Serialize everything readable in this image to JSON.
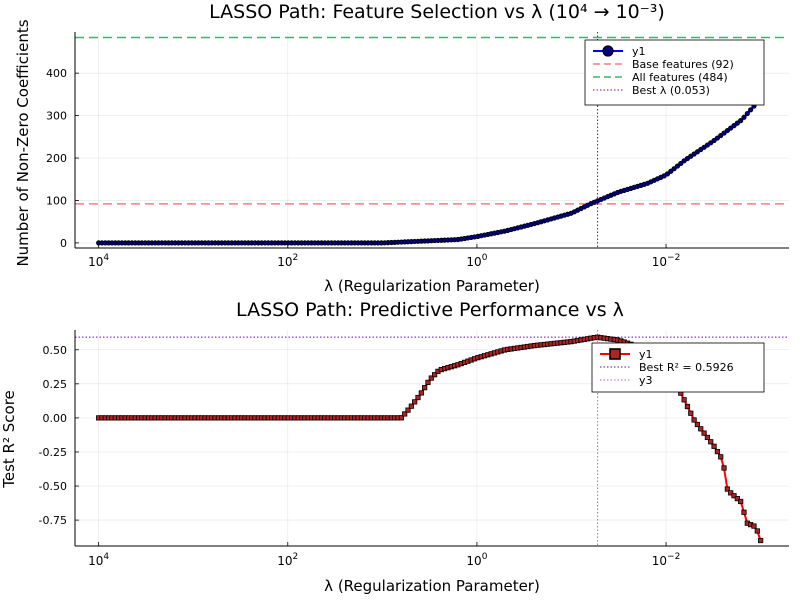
{
  "chart_data": [
    {
      "type": "scatter",
      "title": "LASSO Path: Feature Selection vs λ (10⁴ → 10⁻³)",
      "xlabel": "λ (Regularization Parameter)",
      "ylabel": "Number of Non-Zero Coefficients",
      "xscale": "log10 (reversed)",
      "xlim_log10": [
        4.25,
        -3.3
      ],
      "ylim": [
        -12,
        497
      ],
      "xticks": [
        {
          "log10": 4,
          "label": "10",
          "exp": "4"
        },
        {
          "log10": 2,
          "label": "10",
          "exp": "2"
        },
        {
          "log10": 0,
          "label": "10",
          "exp": "0"
        },
        {
          "log10": -2,
          "label": "10",
          "exp": "−2"
        }
      ],
      "yticks": [
        {
          "value": 0,
          "label": "0"
        },
        {
          "value": 100,
          "label": "100"
        },
        {
          "value": 200,
          "label": "200"
        },
        {
          "value": 300,
          "label": "300"
        },
        {
          "value": 400,
          "label": "400"
        }
      ],
      "grid": true,
      "legend_position": "top-right",
      "series": [
        {
          "name": "y1",
          "color": "#0000ff",
          "marker": "circle",
          "log10_range": [
            4,
            -3
          ],
          "n_points": 200,
          "keypoints": [
            [
              4.0,
              0
            ],
            [
              1.0,
              0
            ],
            [
              0.8,
              2
            ],
            [
              0.5,
              5
            ],
            [
              0.2,
              8
            ],
            [
              0.0,
              15
            ],
            [
              -0.3,
              28
            ],
            [
              -0.6,
              45
            ],
            [
              -1.0,
              70
            ],
            [
              -1.2,
              92
            ],
            [
              -1.5,
              120
            ],
            [
              -1.8,
              140
            ],
            [
              -2.0,
              160
            ],
            [
              -2.2,
              195
            ],
            [
              -2.5,
              240
            ],
            [
              -2.8,
              290
            ],
            [
              -3.0,
              340
            ],
            [
              -3.1,
              372
            ]
          ]
        }
      ],
      "reference_lines": [
        {
          "name": "Base features (92)",
          "axis": "y",
          "value": 92,
          "color": "#f08080",
          "style": "dashed"
        },
        {
          "name": "All features (484)",
          "axis": "y",
          "value": 484,
          "color": "#3cb371",
          "style": "dashed"
        },
        {
          "name": "Best λ (0.053)",
          "axis": "x",
          "value": 0.053,
          "color": "#6a0dad",
          "style": "dotted"
        }
      ]
    },
    {
      "type": "scatter",
      "title": "LASSO Path: Predictive Performance vs λ",
      "xlabel": "λ (Regularization Parameter)",
      "ylabel": "Test R² Score",
      "xscale": "log10 (reversed)",
      "xlim_log10": [
        4.25,
        -3.3
      ],
      "ylim": [
        -0.94,
        0.645
      ],
      "xticks": [
        {
          "log10": 4,
          "label": "10",
          "exp": "4"
        },
        {
          "log10": 2,
          "label": "10",
          "exp": "2"
        },
        {
          "log10": 0,
          "label": "10",
          "exp": "0"
        },
        {
          "log10": -2,
          "label": "10",
          "exp": "−2"
        }
      ],
      "yticks": [
        {
          "value": 0.5,
          "label": "0.50"
        },
        {
          "value": 0.25,
          "label": "0.25"
        },
        {
          "value": 0.0,
          "label": "0.00"
        },
        {
          "value": -0.25,
          "label": "-0.25"
        },
        {
          "value": -0.5,
          "label": "-0.50"
        },
        {
          "value": -0.75,
          "label": "-0.75"
        }
      ],
      "grid": true,
      "legend_position": "top-right",
      "series": [
        {
          "name": "y1",
          "color": "#ff0000",
          "marker": "square",
          "log10_range": [
            4,
            -3
          ],
          "n_points": 200,
          "keypoints": [
            [
              4.0,
              0.0
            ],
            [
              0.8,
              0.0
            ],
            [
              0.7,
              0.08
            ],
            [
              0.6,
              0.17
            ],
            [
              0.5,
              0.28
            ],
            [
              0.4,
              0.35
            ],
            [
              0.2,
              0.39
            ],
            [
              0.0,
              0.44
            ],
            [
              -0.3,
              0.5
            ],
            [
              -0.6,
              0.53
            ],
            [
              -1.0,
              0.56
            ],
            [
              -1.27,
              0.5926
            ],
            [
              -1.5,
              0.57
            ],
            [
              -1.8,
              0.5
            ],
            [
              -2.0,
              0.38
            ],
            [
              -2.1,
              0.26
            ],
            [
              -2.3,
              -0.02
            ],
            [
              -2.5,
              -0.2
            ],
            [
              -2.6,
              -0.31
            ],
            [
              -2.65,
              -0.53
            ],
            [
              -2.8,
              -0.62
            ],
            [
              -2.85,
              -0.77
            ],
            [
              -2.95,
              -0.8
            ],
            [
              -3.0,
              -0.9
            ],
            [
              -3.1,
              -0.91
            ]
          ]
        }
      ],
      "reference_lines": [
        {
          "name": "Best R² = 0.5926",
          "axis": "y",
          "value": 0.5926,
          "color": "#6a0dad",
          "style": "dotted"
        },
        {
          "name": "y3",
          "axis": "x",
          "value": 0.053,
          "color": "#c05ad8",
          "style": "dotted"
        }
      ]
    }
  ]
}
